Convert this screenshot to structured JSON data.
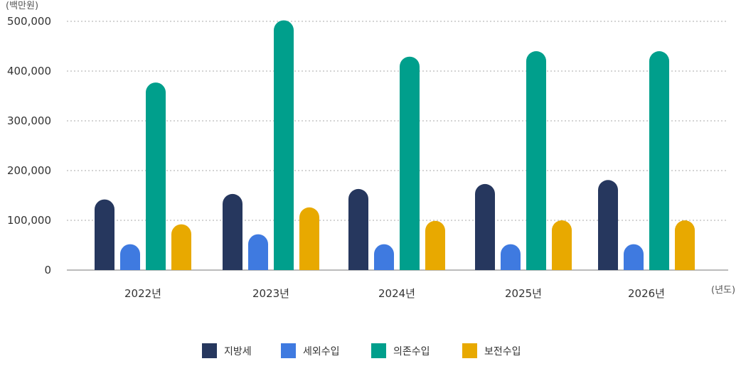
{
  "chart_data": {
    "type": "bar",
    "y_unit": "(백만원)",
    "x_unit": "(년도)",
    "categories": [
      "2022년",
      "2023년",
      "2024년",
      "2025년",
      "2026년"
    ],
    "ylim": [
      0,
      500000
    ],
    "yticks": [
      0,
      100000,
      200000,
      300000,
      400000,
      500000
    ],
    "ytick_labels": [
      "0",
      "100,000",
      "200,000",
      "300,000",
      "400,000",
      "500,000"
    ],
    "grid": true,
    "legend_position": "bottom",
    "series": [
      {
        "name": "지방세",
        "color": "#26375e",
        "values": [
          142000,
          153000,
          163000,
          173000,
          181000
        ]
      },
      {
        "name": "세외수입",
        "color": "#3f7ae0",
        "values": [
          52000,
          72000,
          52000,
          52000,
          52000
        ]
      },
      {
        "name": "의존수입",
        "color": "#009f8c",
        "values": [
          377000,
          502000,
          429000,
          440000,
          440000
        ]
      },
      {
        "name": "보전수입",
        "color": "#e8a900",
        "values": [
          92000,
          126000,
          99000,
          100000,
          100000
        ]
      }
    ]
  }
}
